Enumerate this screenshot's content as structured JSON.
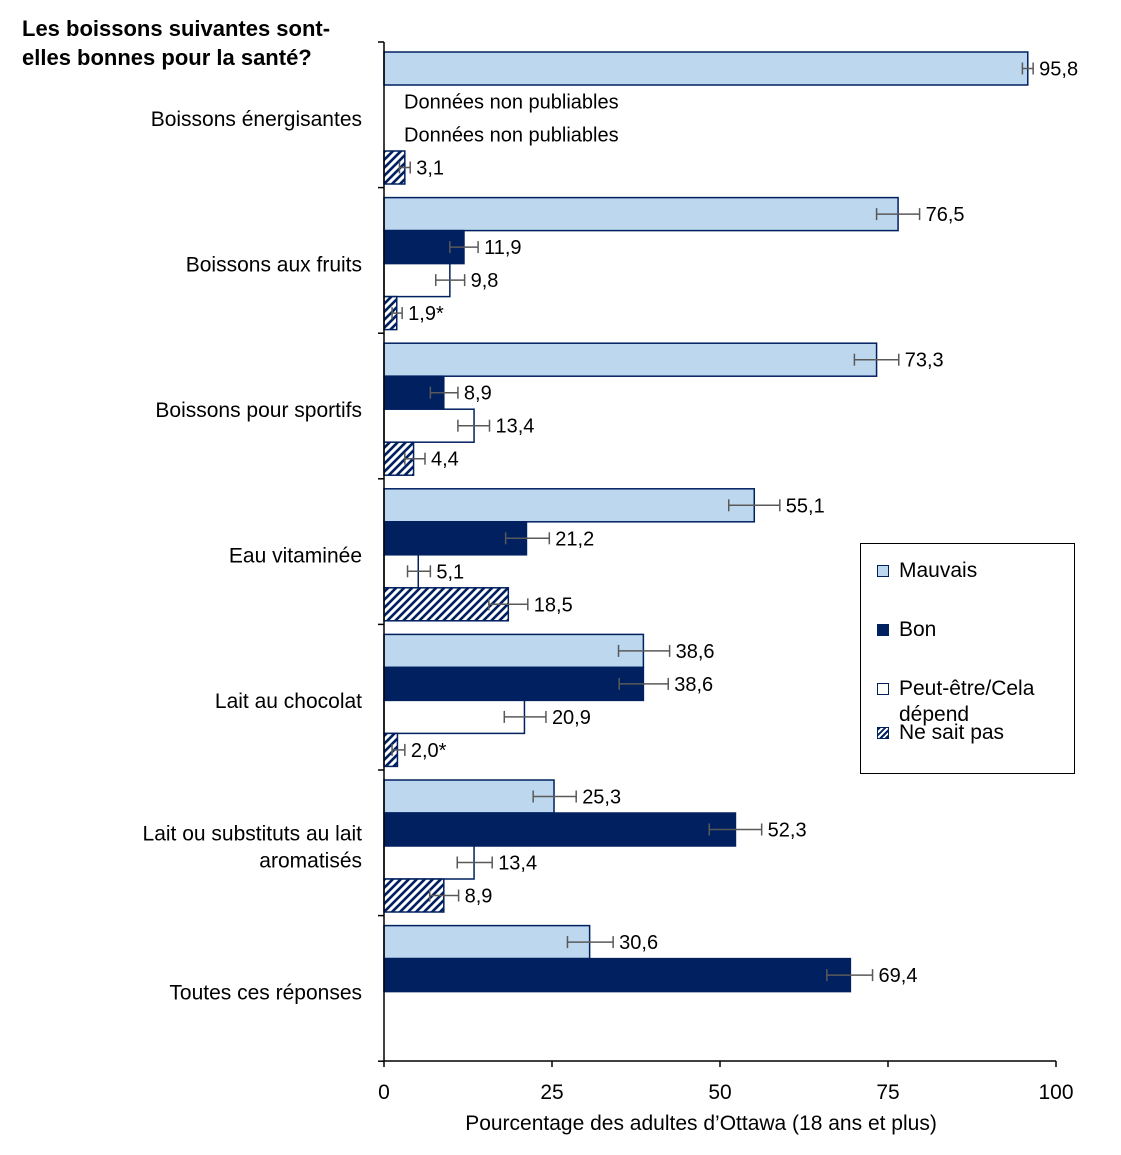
{
  "chart_data": {
    "type": "bar",
    "orientation": "horizontal",
    "title": "Les boissons suivantes sont-elles bonnes pour la santé?",
    "xlabel": "Pourcentage des adultes d’Ottawa (18 ans et plus)",
    "xlim": [
      0,
      100
    ],
    "xticks": [
      "0",
      "25",
      "50",
      "75",
      "100"
    ],
    "grid": false,
    "legend_position": "right",
    "series": [
      {
        "name": "Mauvais",
        "color": "#bdd7ee",
        "pattern": "solid"
      },
      {
        "name": "Bon",
        "color": "#002060",
        "pattern": "solid"
      },
      {
        "name": "Peut-être/Cela dépend",
        "color": "#ffffff",
        "pattern": "solid"
      },
      {
        "name": "Ne sait pas",
        "color": "#002060",
        "pattern": "hatch"
      }
    ],
    "categories": [
      {
        "label": "Boissons énergisantes",
        "bars": [
          {
            "value": 95.8,
            "label": "95,8",
            "err": [
              95.0,
              96.6
            ]
          },
          {
            "value": null,
            "label": "Données non publiables"
          },
          {
            "value": null,
            "label": "Données non publiables"
          },
          {
            "value": 3.1,
            "label": "3,1",
            "err": [
              2.3,
              3.9
            ]
          }
        ]
      },
      {
        "label": "Boissons aux fruits",
        "bars": [
          {
            "value": 76.5,
            "label": "76,5",
            "err": [
              73.3,
              79.7
            ]
          },
          {
            "value": 11.9,
            "label": "11,9",
            "err": [
              9.8,
              14.0
            ]
          },
          {
            "value": 9.8,
            "label": "9,8",
            "err": [
              7.7,
              12.0
            ]
          },
          {
            "value": 1.9,
            "label": "1,9*",
            "err": [
              1.2,
              2.7
            ]
          }
        ]
      },
      {
        "label": "Boissons pour sportifs",
        "bars": [
          {
            "value": 73.3,
            "label": "73,3",
            "err": [
              70.0,
              76.6
            ]
          },
          {
            "value": 8.9,
            "label": "8,9",
            "err": [
              6.9,
              11.0
            ]
          },
          {
            "value": 13.4,
            "label": "13,4",
            "err": [
              11.0,
              15.7
            ]
          },
          {
            "value": 4.4,
            "label": "4,4",
            "err": [
              3.1,
              6.1
            ]
          }
        ]
      },
      {
        "label": "Eau vitaminée",
        "bars": [
          {
            "value": 55.1,
            "label": "55,1",
            "err": [
              51.3,
              58.9
            ]
          },
          {
            "value": 21.2,
            "label": "21,2",
            "err": [
              18.1,
              24.6
            ]
          },
          {
            "value": 5.1,
            "label": "5,1",
            "err": [
              3.5,
              6.9
            ]
          },
          {
            "value": 18.5,
            "label": "18,5",
            "err": [
              15.6,
              21.4
            ]
          }
        ]
      },
      {
        "label": "Lait au chocolat",
        "bars": [
          {
            "value": 38.6,
            "label": "38,6",
            "err": [
              34.9,
              42.5
            ]
          },
          {
            "value": 38.6,
            "label": "38,6",
            "err": [
              35.0,
              42.3
            ]
          },
          {
            "value": 20.9,
            "label": "20,9",
            "err": [
              17.9,
              24.1
            ]
          },
          {
            "value": 2.0,
            "label": "2,0*",
            "err": [
              1.2,
              3.1
            ]
          }
        ]
      },
      {
        "label": "Lait ou substituts au lait aromatisés",
        "bars": [
          {
            "value": 25.3,
            "label": "25,3",
            "err": [
              22.2,
              28.6
            ]
          },
          {
            "value": 52.3,
            "label": "52,3",
            "err": [
              48.4,
              56.2
            ]
          },
          {
            "value": 13.4,
            "label": "13,4",
            "err": [
              10.9,
              16.1
            ]
          },
          {
            "value": 8.9,
            "label": "8,9",
            "err": [
              6.8,
              11.1
            ]
          }
        ]
      },
      {
        "label": "Toutes ces réponses",
        "bars": [
          {
            "value": 30.6,
            "label": "30,6",
            "err": [
              27.3,
              34.1
            ]
          },
          {
            "value": 69.4,
            "label": "69,4",
            "err": [
              65.9,
              72.7
            ]
          }
        ]
      }
    ]
  }
}
